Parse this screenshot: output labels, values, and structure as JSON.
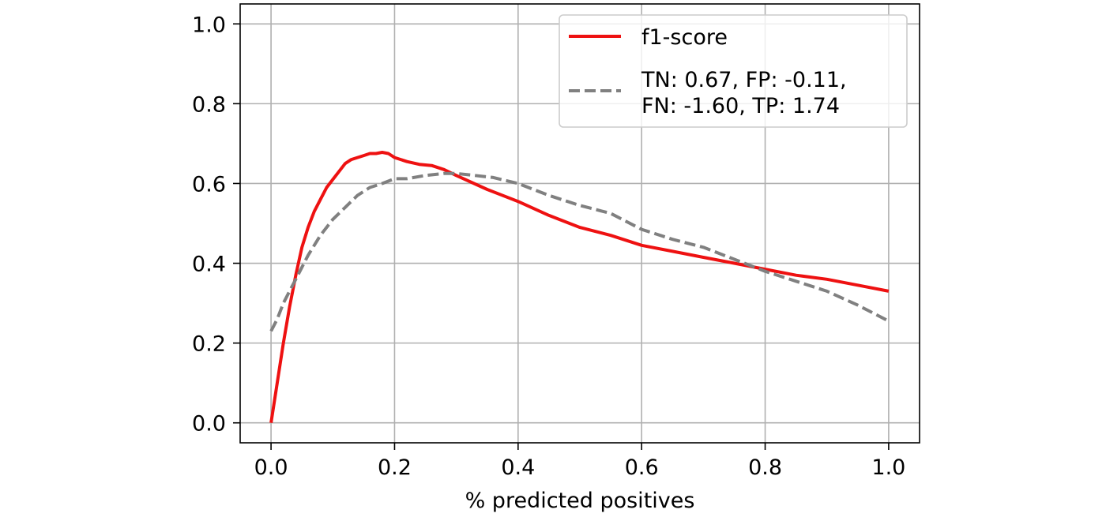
{
  "chart_data": {
    "type": "line",
    "title": "",
    "xlabel": "% predicted positives",
    "ylabel": "",
    "xlim": [
      -0.05,
      1.05
    ],
    "ylim": [
      -0.05,
      1.05
    ],
    "grid": true,
    "legend_position": "top-right",
    "x_ticks": [
      0.0,
      0.2,
      0.4,
      0.6,
      0.8,
      1.0
    ],
    "x_tick_labels": [
      "0.0",
      "0.2",
      "0.4",
      "0.6",
      "0.8",
      "1.0"
    ],
    "y_ticks": [
      0.0,
      0.2,
      0.4,
      0.6,
      0.8,
      1.0
    ],
    "y_tick_labels": [
      "0.0",
      "0.2",
      "0.4",
      "0.6",
      "0.8",
      "1.0"
    ],
    "series": [
      {
        "name": "f1-score",
        "color": "#ee1111",
        "style": "solid",
        "x": [
          0.0,
          0.01,
          0.02,
          0.03,
          0.04,
          0.05,
          0.06,
          0.07,
          0.08,
          0.09,
          0.1,
          0.11,
          0.12,
          0.13,
          0.14,
          0.15,
          0.16,
          0.17,
          0.18,
          0.19,
          0.2,
          0.22,
          0.24,
          0.26,
          0.28,
          0.3,
          0.35,
          0.4,
          0.45,
          0.5,
          0.55,
          0.6,
          0.65,
          0.7,
          0.75,
          0.8,
          0.85,
          0.9,
          0.95,
          1.0
        ],
        "y": [
          0.0,
          0.1,
          0.2,
          0.29,
          0.37,
          0.44,
          0.49,
          0.53,
          0.56,
          0.59,
          0.61,
          0.63,
          0.65,
          0.66,
          0.665,
          0.67,
          0.675,
          0.675,
          0.678,
          0.675,
          0.665,
          0.655,
          0.648,
          0.645,
          0.635,
          0.62,
          0.585,
          0.555,
          0.52,
          0.49,
          0.47,
          0.445,
          0.43,
          0.415,
          0.4,
          0.385,
          0.37,
          0.36,
          0.345,
          0.33
        ]
      },
      {
        "name": "TN: 0.67, FP: -0.11,\nFN: -1.60, TP: 1.74",
        "color": "#808080",
        "style": "dashed",
        "x": [
          0.0,
          0.01,
          0.02,
          0.03,
          0.04,
          0.05,
          0.06,
          0.08,
          0.1,
          0.12,
          0.14,
          0.16,
          0.18,
          0.2,
          0.22,
          0.25,
          0.28,
          0.3,
          0.33,
          0.36,
          0.4,
          0.45,
          0.5,
          0.55,
          0.6,
          0.65,
          0.7,
          0.75,
          0.8,
          0.85,
          0.9,
          0.95,
          1.0
        ],
        "y": [
          0.23,
          0.26,
          0.3,
          0.33,
          0.36,
          0.39,
          0.42,
          0.47,
          0.51,
          0.54,
          0.57,
          0.59,
          0.6,
          0.612,
          0.612,
          0.62,
          0.625,
          0.625,
          0.62,
          0.615,
          0.6,
          0.57,
          0.545,
          0.525,
          0.485,
          0.46,
          0.44,
          0.41,
          0.38,
          0.355,
          0.33,
          0.295,
          0.255
        ]
      }
    ]
  }
}
